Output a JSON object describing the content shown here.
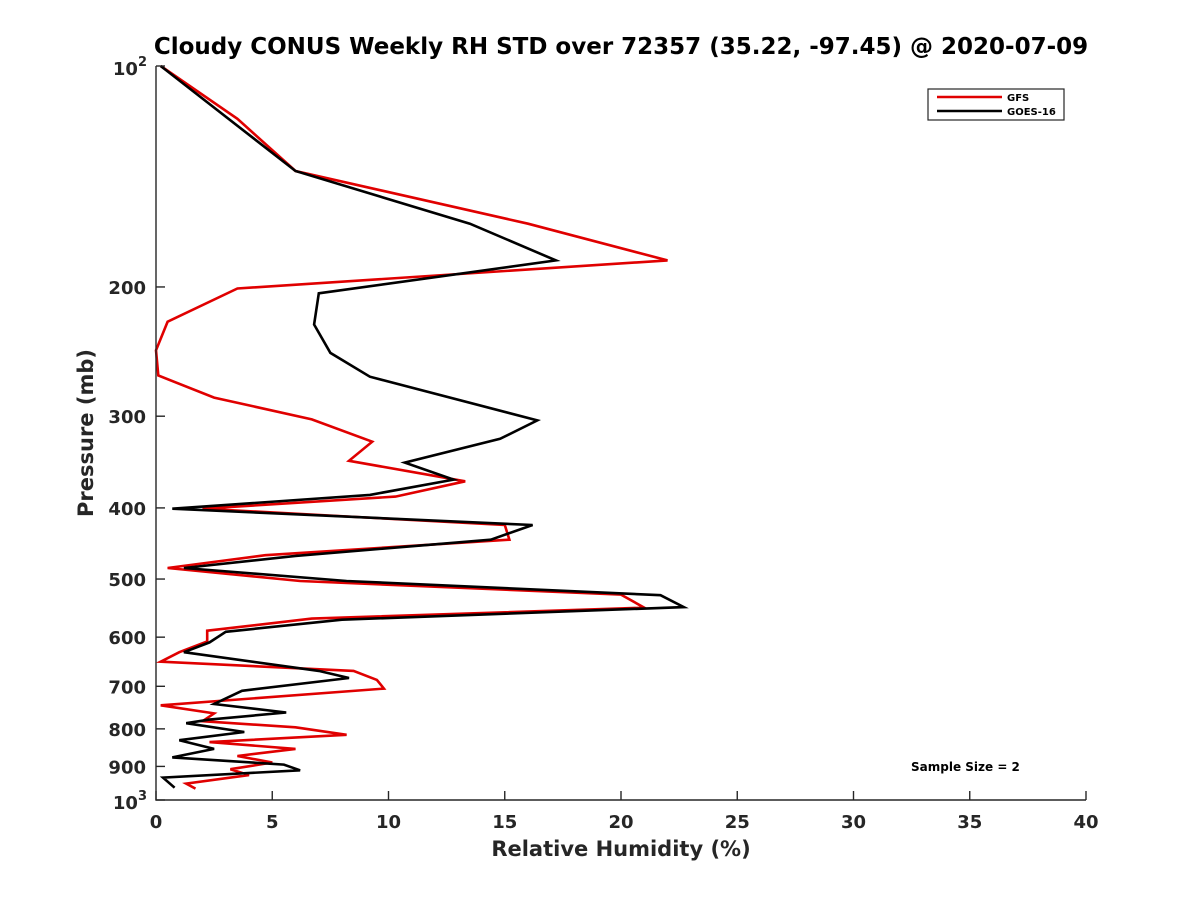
{
  "chart_data": {
    "type": "line",
    "title": "Cloudy CONUS Weekly RH STD over 72357 (35.22, -97.45) @ 2020-07-09",
    "xlabel": "Relative Humidity (%)",
    "ylabel": "Pressure (mb)",
    "xlim": [
      0,
      40
    ],
    "ylim": [
      100,
      1000
    ],
    "y_scale": "log",
    "y_reversed": true,
    "grid": false,
    "legend_position": "top-right",
    "x_ticks": [
      "0",
      "5",
      "10",
      "15",
      "20",
      "25",
      "30",
      "35",
      "40"
    ],
    "y_ticks": [
      {
        "value": 100,
        "base": "10",
        "exp": "2",
        "label": ""
      },
      {
        "value": 200,
        "label": "200"
      },
      {
        "value": 300,
        "label": "300"
      },
      {
        "value": 400,
        "label": "400"
      },
      {
        "value": 500,
        "label": "500"
      },
      {
        "value": 600,
        "label": "600"
      },
      {
        "value": 700,
        "label": "700"
      },
      {
        "value": 800,
        "label": "800"
      },
      {
        "value": 900,
        "label": "900"
      },
      {
        "value": 1000,
        "base": "10",
        "exp": "3",
        "label": ""
      }
    ],
    "annotation": "Sample Size = 2",
    "series": [
      {
        "name": "GFS",
        "color": "#e00000",
        "points": [
          [
            0.2,
            100
          ],
          [
            3.5,
            118
          ],
          [
            6.0,
            139
          ],
          [
            16.0,
            164
          ],
          [
            22.0,
            184
          ],
          [
            3.5,
            201
          ],
          [
            0.5,
            223
          ],
          [
            0,
            244
          ],
          [
            0.1,
            264
          ],
          [
            2.5,
            283
          ],
          [
            6.7,
            303
          ],
          [
            9.3,
            325
          ],
          [
            8.3,
            345
          ],
          [
            13.3,
            368
          ],
          [
            10.3,
            386
          ],
          [
            2.0,
            401
          ],
          [
            15.0,
            422
          ],
          [
            15.2,
            442
          ],
          [
            4.7,
            464
          ],
          [
            0.5,
            483
          ],
          [
            6.2,
            503
          ],
          [
            20.0,
            525
          ],
          [
            21.0,
            547
          ],
          [
            6.7,
            566
          ],
          [
            2.2,
            588
          ],
          [
            2.2,
            608
          ],
          [
            1.0,
            629
          ],
          [
            0.2,
            648
          ],
          [
            8.5,
            667
          ],
          [
            9.5,
            686
          ],
          [
            9.8,
            705
          ],
          [
            0.2,
            743
          ],
          [
            2.5,
            762
          ],
          [
            2.0,
            781
          ],
          [
            6.0,
            796
          ],
          [
            8.2,
            815
          ],
          [
            2.3,
            834
          ],
          [
            6.0,
            852
          ],
          [
            3.5,
            871
          ],
          [
            5.0,
            889
          ],
          [
            3.2,
            908
          ],
          [
            4.0,
            925
          ],
          [
            1.3,
            950
          ],
          [
            1.7,
            965
          ]
        ]
      },
      {
        "name": "GOES-16",
        "color": "#000000",
        "points": [
          [
            0.2,
            100
          ],
          [
            6.0,
            139
          ],
          [
            13.5,
            164
          ],
          [
            17.2,
            184
          ],
          [
            7.0,
            204
          ],
          [
            6.8,
            225
          ],
          [
            7.5,
            246
          ],
          [
            9.2,
            265
          ],
          [
            16.4,
            304
          ],
          [
            14.8,
            322
          ],
          [
            10.7,
            347
          ],
          [
            12.8,
            366
          ],
          [
            9.2,
            384
          ],
          [
            0.7,
            401
          ],
          [
            16.2,
            422
          ],
          [
            14.4,
            442
          ],
          [
            6.0,
            465
          ],
          [
            1.2,
            483
          ],
          [
            8.2,
            503
          ],
          [
            21.7,
            526
          ],
          [
            22.7,
            546
          ],
          [
            8.0,
            568
          ],
          [
            3.0,
            590
          ],
          [
            2.3,
            610
          ],
          [
            1.2,
            629
          ],
          [
            7.0,
            667
          ],
          [
            8.3,
            682
          ],
          [
            3.7,
            710
          ],
          [
            2.5,
            740
          ],
          [
            5.6,
            760
          ],
          [
            2.3,
            777
          ],
          [
            1.3,
            786
          ],
          [
            3.8,
            808
          ],
          [
            1.0,
            829
          ],
          [
            2.5,
            852
          ],
          [
            0.7,
            875
          ],
          [
            5.5,
            895
          ],
          [
            6.2,
            911
          ],
          [
            0.3,
            932
          ],
          [
            0.8,
            962
          ]
        ]
      }
    ]
  }
}
